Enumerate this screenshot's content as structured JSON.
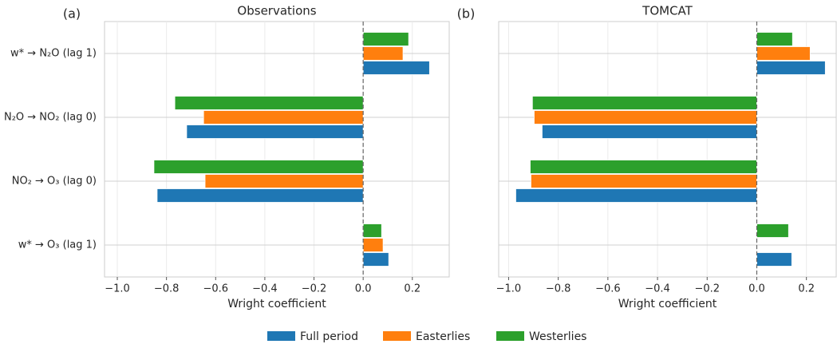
{
  "chart_data": [
    {
      "type": "bar",
      "orientation": "horizontal",
      "panel_label": "(a)",
      "title": "Observations",
      "xlabel": "Wright coefficient",
      "categories": [
        "w* → N₂O (lag 1)",
        "N₂O → NO₂ (lag 0)",
        "NO₂ → O₃ (lag 0)",
        "w* → O₃ (lag 1)"
      ],
      "series": [
        {
          "name": "Full period",
          "color": "#1f77b4",
          "values": [
            0.27,
            -0.718,
            -0.838,
            0.104
          ]
        },
        {
          "name": "Easterlies",
          "color": "#ff7f0e",
          "values": [
            0.162,
            -0.649,
            -0.643,
            0.081
          ]
        },
        {
          "name": "Westerlies",
          "color": "#2ca02c",
          "values": [
            0.185,
            -0.766,
            -0.851,
            0.075
          ]
        }
      ],
      "xlim": [
        -1.052,
        0.35
      ],
      "xticks": [
        {
          "value": -1.0,
          "label": "−1.0"
        },
        {
          "value": -0.8,
          "label": "−0.8"
        },
        {
          "value": -0.6,
          "label": "−0.6"
        },
        {
          "value": -0.4,
          "label": "−0.4"
        },
        {
          "value": -0.2,
          "label": "−0.2"
        },
        {
          "value": 0,
          "label": "0.0"
        },
        0.2
      ],
      "grid": true
    },
    {
      "type": "bar",
      "orientation": "horizontal",
      "panel_label": "(b)",
      "title": "TOMCAT",
      "xlabel": "Wright coefficient",
      "series": [
        {
          "color": "#1f77b4",
          "values": [
            0.276,
            -0.865,
            -0.971,
            0.141
          ]
        },
        {
          "color": "#ff7f0e",
          "values": [
            0.215,
            -0.897,
            -0.91,
            null
          ]
        },
        {
          "color": "#2ca02c",
          "values": [
            0.144,
            -0.904,
            -0.913,
            0.128
          ]
        }
      ],
      "xlim": [
        -1.04,
        0.32
      ],
      "xticks": [
        {
          "value": -1.0,
          "label": "−1.0"
        },
        {
          "value": -0.8,
          "label": "−0.8"
        },
        {
          "value": -0.6,
          "label": "−0.6"
        },
        {
          "value": -0.4,
          "label": "−0.4"
        },
        {
          "value": -0.2,
          "label": "−0.2"
        },
        {
          "value": 0,
          "label": "0.0"
        },
        0.2
      ],
      "grid": true
    }
  ]
}
